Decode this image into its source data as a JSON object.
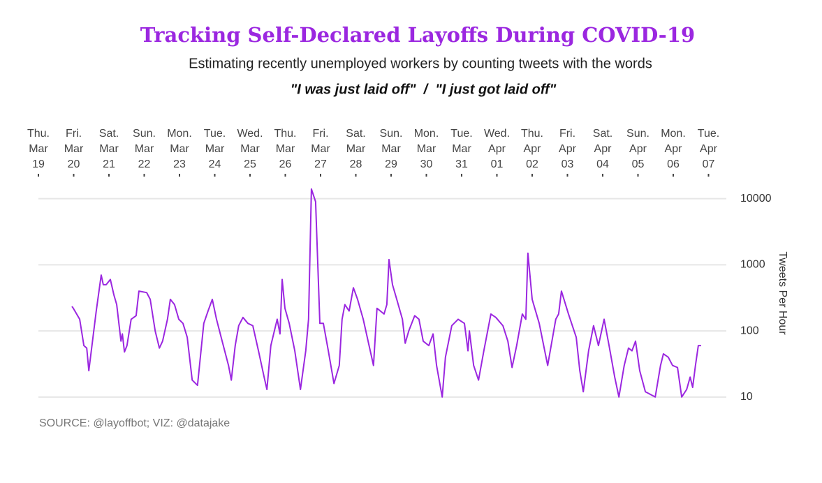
{
  "chart_data": {
    "type": "line",
    "title": "Tracking Self-Declared Layoffs During COVID-19",
    "subtitle": "Estimating recently unemployed workers by counting tweets with the words",
    "subtitle_2": "\"I was just laid off\"  /  \"I just got laid off\"",
    "y_label": "Tweets Per Hour",
    "source": "SOURCE: @layoffbot; VIZ: @datajake",
    "log_y": true,
    "grid": true,
    "x_axis_position": "top",
    "xlim": [
      0,
      19.5
    ],
    "ylim": [
      8,
      15000
    ],
    "yticks": [
      10,
      100,
      1000,
      10000
    ],
    "xticks": [
      {
        "value": 0,
        "label": [
          "Thu.",
          "Mar",
          "19"
        ]
      },
      {
        "value": 1,
        "label": [
          "Fri.",
          "Mar",
          "20"
        ]
      },
      {
        "value": 2,
        "label": [
          "Sat.",
          "Mar",
          "21"
        ]
      },
      {
        "value": 3,
        "label": [
          "Sun.",
          "Mar",
          "22"
        ]
      },
      {
        "value": 4,
        "label": [
          "Mon.",
          "Mar",
          "23"
        ]
      },
      {
        "value": 5,
        "label": [
          "Tue.",
          "Mar",
          "24"
        ]
      },
      {
        "value": 6,
        "label": [
          "Wed.",
          "Mar",
          "25"
        ]
      },
      {
        "value": 7,
        "label": [
          "Thu.",
          "Mar",
          "26"
        ]
      },
      {
        "value": 8,
        "label": [
          "Fri.",
          "Mar",
          "27"
        ]
      },
      {
        "value": 9,
        "label": [
          "Sat.",
          "Mar",
          "28"
        ]
      },
      {
        "value": 10,
        "label": [
          "Sun.",
          "Mar",
          "29"
        ]
      },
      {
        "value": 11,
        "label": [
          "Mon.",
          "Mar",
          "30"
        ]
      },
      {
        "value": 12,
        "label": [
          "Tue.",
          "Mar",
          "31"
        ]
      },
      {
        "value": 13,
        "label": [
          "Wed.",
          "Apr",
          "01"
        ]
      },
      {
        "value": 14,
        "label": [
          "Thu.",
          "Apr",
          "02"
        ]
      },
      {
        "value": 15,
        "label": [
          "Fri.",
          "Apr",
          "03"
        ]
      },
      {
        "value": 16,
        "label": [
          "Sat.",
          "Apr",
          "04"
        ]
      },
      {
        "value": 17,
        "label": [
          "Sun.",
          "Apr",
          "05"
        ]
      },
      {
        "value": 18,
        "label": [
          "Mon.",
          "Apr",
          "06"
        ]
      },
      {
        "value": 19,
        "label": [
          "Tue.",
          "Apr",
          "07"
        ]
      }
    ],
    "x": [
      0.95,
      0.99,
      1.17,
      1.29,
      1.37,
      1.43,
      1.64,
      1.78,
      1.84,
      1.92,
      2.04,
      2.14,
      2.22,
      2.34,
      2.38,
      2.44,
      2.51,
      2.63,
      2.77,
      2.85,
      3.07,
      3.17,
      3.31,
      3.43,
      3.52,
      3.66,
      3.74,
      3.86,
      3.98,
      4.1,
      4.22,
      4.36,
      4.51,
      4.61,
      4.69,
      4.81,
      4.93,
      5.05,
      5.21,
      5.39,
      5.47,
      5.58,
      5.68,
      5.8,
      5.94,
      6.08,
      6.24,
      6.4,
      6.48,
      6.59,
      6.77,
      6.85,
      6.91,
      6.99,
      7.11,
      7.27,
      7.43,
      7.58,
      7.66,
      7.74,
      7.86,
      7.98,
      8.08,
      8.22,
      8.38,
      8.53,
      8.61,
      8.69,
      8.81,
      8.93,
      9.05,
      9.21,
      9.5,
      9.6,
      9.8,
      9.88,
      9.94,
      10.04,
      10.16,
      10.32,
      10.4,
      10.5,
      10.67,
      10.79,
      10.91,
      11.07,
      11.19,
      11.29,
      11.45,
      11.54,
      11.72,
      11.9,
      12.08,
      12.18,
      12.22,
      12.34,
      12.48,
      12.63,
      12.83,
      12.97,
      13.17,
      13.31,
      13.43,
      13.56,
      13.72,
      13.82,
      13.88,
      14.0,
      14.2,
      14.44,
      14.67,
      14.75,
      14.83,
      15.03,
      15.25,
      15.35,
      15.45,
      15.6,
      15.74,
      15.88,
      16.04,
      16.18,
      16.34,
      16.46,
      16.61,
      16.73,
      16.83,
      16.93,
      17.05,
      17.21,
      17.49,
      17.64,
      17.72,
      17.86,
      17.98,
      18.12,
      18.24,
      18.38,
      18.48,
      18.55,
      18.63,
      18.71,
      18.79
    ],
    "series": [
      {
        "name": "Tweets Per Hour",
        "color": "#9b27e0",
        "values": [
          235,
          220,
          150,
          60,
          55,
          25,
          200,
          700,
          500,
          500,
          600,
          350,
          250,
          70,
          90,
          48,
          60,
          150,
          170,
          400,
          380,
          300,
          100,
          55,
          70,
          150,
          300,
          250,
          150,
          130,
          80,
          18,
          15,
          50,
          130,
          200,
          300,
          150,
          70,
          30,
          18,
          60,
          120,
          160,
          130,
          120,
          50,
          20,
          13,
          60,
          150,
          90,
          600,
          220,
          130,
          50,
          13,
          50,
          150,
          14000,
          9000,
          130,
          130,
          50,
          16,
          30,
          150,
          250,
          200,
          450,
          300,
          150,
          30,
          220,
          180,
          250,
          1200,
          500,
          300,
          150,
          65,
          100,
          170,
          150,
          70,
          60,
          90,
          30,
          10,
          40,
          120,
          150,
          130,
          50,
          100,
          30,
          18,
          50,
          180,
          160,
          120,
          70,
          28,
          60,
          180,
          150,
          1500,
          300,
          130,
          30,
          150,
          180,
          400,
          180,
          80,
          25,
          12,
          50,
          120,
          60,
          150,
          60,
          20,
          10,
          30,
          55,
          50,
          70,
          25,
          12,
          10,
          30,
          45,
          40,
          30,
          28,
          10,
          13,
          20,
          14,
          30,
          60,
          60
        ]
      }
    ]
  }
}
